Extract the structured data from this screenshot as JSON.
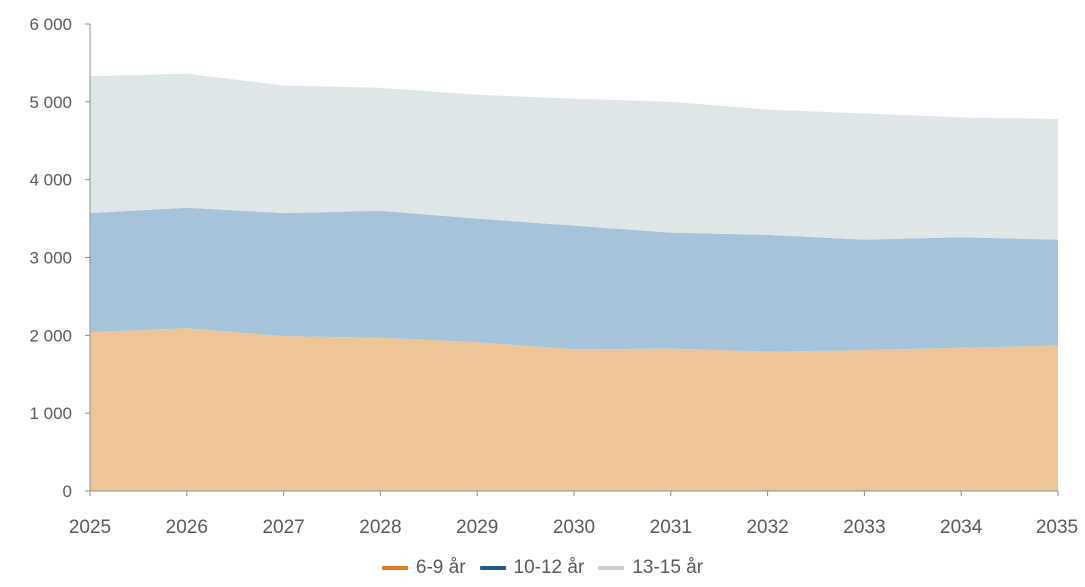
{
  "chart_data": {
    "type": "area",
    "stacked": true,
    "x": [
      "2025",
      "2026",
      "2027",
      "2028",
      "2029",
      "2030",
      "2031",
      "2032",
      "2033",
      "2034",
      "2035"
    ],
    "series": [
      {
        "name": "6-9 år",
        "color": "#e07b1f",
        "fill": "#eec596",
        "values": [
          2040,
          2090,
          1990,
          1970,
          1910,
          1820,
          1830,
          1790,
          1810,
          1840,
          1870
        ]
      },
      {
        "name": "10-12 år",
        "color": "#1f5c8f",
        "fill": "#a6c3dc",
        "values": [
          1530,
          1550,
          1580,
          1630,
          1590,
          1590,
          1490,
          1500,
          1420,
          1420,
          1360
        ]
      },
      {
        "name": "13-15 år",
        "color": "#c6ccd0",
        "fill": "#dee6e8",
        "values": [
          1760,
          1720,
          1640,
          1580,
          1590,
          1630,
          1680,
          1610,
          1620,
          1540,
          1550
        ]
      }
    ],
    "ylim": [
      0,
      6000
    ],
    "yticks": [
      "0",
      "1 000",
      "2 000",
      "3 000",
      "4 000",
      "5 000",
      "6 000"
    ],
    "ytick_values": [
      0,
      1000,
      2000,
      3000,
      4000,
      5000,
      6000
    ],
    "legend_position": "bottom-center",
    "grid": false
  }
}
